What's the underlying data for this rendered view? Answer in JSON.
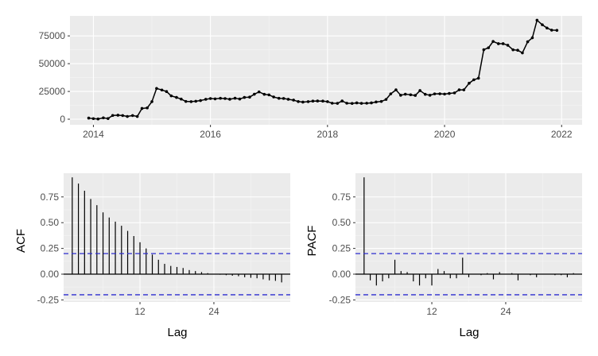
{
  "colors": {
    "panel_bg": "#ebebeb",
    "grid_major": "#ffffff",
    "grid_minor": "#f5f5f5",
    "ink": "#000000",
    "ci_line": "#2c2ccf",
    "tick_text": "#4d4d4d"
  },
  "chart_data": [
    {
      "type": "line",
      "title": "",
      "xlabel": "",
      "ylabel": "",
      "x_ticks": [
        "2014",
        "2016",
        "2018",
        "2020",
        "2022"
      ],
      "y_ticks": [
        "0",
        "25000",
        "50000",
        "75000"
      ],
      "xlim": [
        2013.6,
        2022.35
      ],
      "ylim": [
        -5000,
        93000
      ],
      "grid": true,
      "series": [
        {
          "points": [
            [
              2013.92,
              1000
            ],
            [
              2014.0,
              500
            ],
            [
              2014.08,
              200
            ],
            [
              2014.17,
              1200
            ],
            [
              2014.25,
              600
            ],
            [
              2014.33,
              3400
            ],
            [
              2014.42,
              3600
            ],
            [
              2014.5,
              3300
            ],
            [
              2014.58,
              2500
            ],
            [
              2014.67,
              3300
            ],
            [
              2014.75,
              2500
            ],
            [
              2014.83,
              9700
            ],
            [
              2014.92,
              10200
            ],
            [
              2015.0,
              15800
            ],
            [
              2015.08,
              27700
            ],
            [
              2015.17,
              26300
            ],
            [
              2015.25,
              24900
            ],
            [
              2015.33,
              21000
            ],
            [
              2015.42,
              19600
            ],
            [
              2015.5,
              18100
            ],
            [
              2015.58,
              16000
            ],
            [
              2015.67,
              15800
            ],
            [
              2015.75,
              16200
            ],
            [
              2015.83,
              16800
            ],
            [
              2015.92,
              17900
            ],
            [
              2016.0,
              18600
            ],
            [
              2016.08,
              18300
            ],
            [
              2016.17,
              18800
            ],
            [
              2016.25,
              18600
            ],
            [
              2016.33,
              18000
            ],
            [
              2016.42,
              18900
            ],
            [
              2016.5,
              18200
            ],
            [
              2016.58,
              19600
            ],
            [
              2016.67,
              19900
            ],
            [
              2016.75,
              22500
            ],
            [
              2016.83,
              24600
            ],
            [
              2016.92,
              22400
            ],
            [
              2017.0,
              21900
            ],
            [
              2017.08,
              20000
            ],
            [
              2017.17,
              18800
            ],
            [
              2017.25,
              18700
            ],
            [
              2017.33,
              17900
            ],
            [
              2017.42,
              17200
            ],
            [
              2017.5,
              15900
            ],
            [
              2017.58,
              15400
            ],
            [
              2017.67,
              15800
            ],
            [
              2017.75,
              16300
            ],
            [
              2017.83,
              16400
            ],
            [
              2017.92,
              16300
            ],
            [
              2018.0,
              15800
            ],
            [
              2018.08,
              14400
            ],
            [
              2018.17,
              14300
            ],
            [
              2018.25,
              16400
            ],
            [
              2018.33,
              14400
            ],
            [
              2018.42,
              14200
            ],
            [
              2018.5,
              14700
            ],
            [
              2018.58,
              14300
            ],
            [
              2018.67,
              14400
            ],
            [
              2018.75,
              14700
            ],
            [
              2018.83,
              15500
            ],
            [
              2018.92,
              16000
            ],
            [
              2019.0,
              17800
            ],
            [
              2019.08,
              22800
            ],
            [
              2019.17,
              26400
            ],
            [
              2019.25,
              21600
            ],
            [
              2019.33,
              22500
            ],
            [
              2019.42,
              22000
            ],
            [
              2019.5,
              21400
            ],
            [
              2019.58,
              25800
            ],
            [
              2019.67,
              22400
            ],
            [
              2019.75,
              21600
            ],
            [
              2019.83,
              22800
            ],
            [
              2019.92,
              22900
            ],
            [
              2020.0,
              22600
            ],
            [
              2020.08,
              23200
            ],
            [
              2020.17,
              23700
            ],
            [
              2020.25,
              26400
            ],
            [
              2020.33,
              26400
            ],
            [
              2020.42,
              32400
            ],
            [
              2020.5,
              35500
            ],
            [
              2020.58,
              36900
            ],
            [
              2020.67,
              62600
            ],
            [
              2020.75,
              64300
            ],
            [
              2020.83,
              70000
            ],
            [
              2020.92,
              68000
            ],
            [
              2021.0,
              68000
            ],
            [
              2021.08,
              66600
            ],
            [
              2021.17,
              62500
            ],
            [
              2021.25,
              62100
            ],
            [
              2021.33,
              59700
            ],
            [
              2021.42,
              69700
            ],
            [
              2021.5,
              73300
            ],
            [
              2021.58,
              89100
            ],
            [
              2021.67,
              85000
            ],
            [
              2021.75,
              82100
            ],
            [
              2021.83,
              80200
            ],
            [
              2021.92,
              80000
            ]
          ]
        }
      ]
    },
    {
      "type": "bar",
      "title": "",
      "xlabel": "Lag",
      "ylabel": "ACF",
      "x_ticks": [
        "12",
        "24"
      ],
      "y_ticks": [
        "-0.25",
        "0.00",
        "0.25",
        "0.50",
        "0.75"
      ],
      "xlim": [
        -0.4,
        36.4
      ],
      "ylim": [
        -0.27,
        0.98
      ],
      "ci": [
        0.2,
        -0.2
      ],
      "grid": true,
      "lags": [
        1,
        2,
        3,
        4,
        5,
        6,
        7,
        8,
        9,
        10,
        11,
        12,
        13,
        14,
        15,
        16,
        17,
        18,
        19,
        20,
        21,
        22,
        23,
        24,
        25,
        26,
        27,
        28,
        29,
        30,
        31,
        32,
        33,
        34,
        35
      ],
      "values": [
        0.94,
        0.88,
        0.81,
        0.73,
        0.67,
        0.6,
        0.55,
        0.51,
        0.47,
        0.42,
        0.37,
        0.31,
        0.25,
        0.19,
        0.14,
        0.1,
        0.08,
        0.07,
        0.06,
        0.04,
        0.03,
        0.02,
        0.01,
        0.0,
        -0.005,
        -0.01,
        -0.015,
        -0.02,
        -0.03,
        -0.035,
        -0.04,
        -0.05,
        -0.06,
        -0.065,
        -0.08
      ]
    },
    {
      "type": "bar",
      "title": "",
      "xlabel": "Lag",
      "ylabel": "PACF",
      "x_ticks": [
        "12",
        "24"
      ],
      "y_ticks": [
        "-0.25",
        "0.00",
        "0.25",
        "0.50",
        "0.75"
      ],
      "xlim": [
        -0.4,
        36.4
      ],
      "ylim": [
        -0.27,
        0.98
      ],
      "ci": [
        0.2,
        -0.2
      ],
      "grid": true,
      "lags": [
        1,
        2,
        3,
        4,
        5,
        6,
        7,
        8,
        9,
        10,
        11,
        12,
        13,
        14,
        15,
        16,
        17,
        18,
        19,
        20,
        21,
        22,
        23,
        24,
        25,
        26,
        27,
        28,
        29,
        30,
        31,
        32,
        33,
        34,
        35
      ],
      "values": [
        0.94,
        -0.06,
        -0.11,
        -0.07,
        -0.04,
        0.14,
        0.03,
        0.02,
        -0.07,
        -0.11,
        -0.04,
        -0.11,
        0.05,
        0.03,
        -0.04,
        -0.04,
        0.16,
        -0.03,
        0.0,
        -0.01,
        0.01,
        -0.05,
        0.02,
        0.0,
        0.01,
        -0.06,
        0.0,
        -0.01,
        -0.03,
        0.0,
        0.0,
        -0.01,
        -0.01,
        -0.03,
        0.01
      ]
    }
  ]
}
